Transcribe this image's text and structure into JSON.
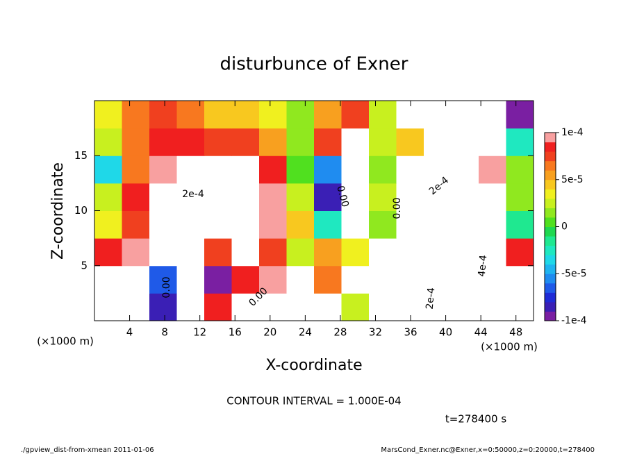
{
  "chart_data": {
    "type": "contourf",
    "title": "disturbunce of Exner",
    "x_label": "X-coordinate",
    "y_label": "Z-coordinate",
    "x_unit": "(×1000 m)",
    "x_unit_right": "(×1000 m)",
    "contour_interval": "CONTOUR INTERVAL = 1.000E-04",
    "time_label": "t=278400 s",
    "footer_left": "./gpview_dist-from-xmean  2011-01-06",
    "footer_right": "MarsCond_Exner.nc@Exner,x=0:50000,z=0:20000,t=278400",
    "annotations": [
      "2e-4",
      "0.00",
      "0.00",
      "0.00",
      "0.00",
      "2e-4",
      "4e-4",
      "2e-4"
    ],
    "xlim": [
      0,
      50
    ],
    "ylim": [
      0,
      20
    ],
    "xticks": [
      4,
      8,
      12,
      16,
      20,
      24,
      28,
      32,
      36,
      40,
      44,
      48
    ],
    "yticks": [
      5,
      10,
      15
    ],
    "clim": [
      -0.0001,
      0.0001
    ],
    "cticks": [
      {
        "value": 0.0001,
        "label": "1e-4"
      },
      {
        "value": 5e-05,
        "label": "5e-5"
      },
      {
        "value": 0,
        "label": "0"
      },
      {
        "value": -5e-05,
        "label": "-5e-5"
      },
      {
        "value": -0.0001,
        "label": "-1e-4"
      }
    ],
    "colors": [
      "#7a1fa2",
      "#3a1fb5",
      "#1f2bd6",
      "#1f5ae8",
      "#1f8cf0",
      "#1fb4f0",
      "#1fd8e8",
      "#1fe8c0",
      "#1fe890",
      "#1fd850",
      "#50e01f",
      "#90e81f",
      "#c8f01f",
      "#f0f01f",
      "#f8c81f",
      "#f8a01f",
      "#f8781f",
      "#f0401f",
      "#f01f1f",
      "#f8a0a0"
    ],
    "x": [
      1.5625,
      4.6875,
      7.8125,
      10.9375,
      14.0625,
      17.1875,
      20.3125,
      23.4375,
      26.5625,
      29.6875,
      32.8125,
      35.9375,
      39.0625,
      42.1875,
      45.3125,
      48.4375
    ],
    "z": [
      1.25,
      3.75,
      6.25,
      8.75,
      11.25,
      13.75,
      16.25,
      18.75
    ],
    "values": [
      [
        0.00015,
        -0.00015,
        -8e-05,
        0.00015,
        8e-05,
        0.00015,
        -0.00015,
        -0.00025,
        -0.00015,
        2e-05,
        0.00015,
        0.00015,
        -0.00015,
        -0.00015,
        0.00015,
        -0.00015
      ],
      [
        0.00015,
        -0.00015,
        -7e-05,
        0.00015,
        -9e-05,
        8e-05,
        9e-05,
        -0.00015,
        6e-05,
        0.00015,
        0.00015,
        -0.00015,
        -0.00015,
        -0.00025,
        -0.00015,
        0.00015
      ],
      [
        8e-05,
        0.0001,
        0.00015,
        0.00015,
        7e-05,
        0.00015,
        7e-05,
        2e-05,
        5e-05,
        3e-05,
        0.00015,
        -0.00015,
        -0.00015,
        -0.00025,
        -0.00015,
        8e-05
      ],
      [
        3e-05,
        7e-05,
        0.00015,
        0.00015,
        0.00015,
        0.00015,
        9e-05,
        4e-05,
        -3e-05,
        0.00015,
        1e-05,
        0.00015,
        -0.00015,
        -0.00015,
        -0.00015,
        -2e-05
      ],
      [
        2e-05,
        8e-05,
        0.00015,
        0.00015,
        0.00015,
        0.00015,
        9e-05,
        2e-05,
        -8e-05,
        0.00015,
        2e-05,
        0.00015,
        -0.00015,
        -0.00015,
        -0.00015,
        1e-05
      ],
      [
        -4e-05,
        6e-05,
        0.0001,
        0.00015,
        0.00015,
        0.00015,
        8e-05,
        0,
        -6e-05,
        0.00015,
        1e-05,
        0.00015,
        0.00015,
        0.00015,
        0.0001,
        1e-05
      ],
      [
        2e-05,
        6e-05,
        8e-05,
        8e-05,
        7e-05,
        7e-05,
        5e-05,
        1e-05,
        7e-05,
        0.00015,
        2e-05,
        4e-05,
        0.00015,
        0.00015,
        0.00015,
        -3e-05
      ],
      [
        3e-05,
        6e-05,
        7e-05,
        6e-05,
        4e-05,
        4e-05,
        3e-05,
        1e-05,
        5e-05,
        7e-05,
        2e-05,
        0.00015,
        0.00015,
        0.00015,
        0.00015,
        -9e-05
      ]
    ]
  }
}
